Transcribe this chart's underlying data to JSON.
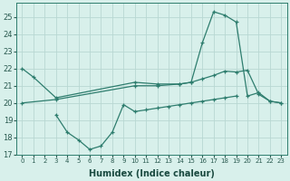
{
  "xlabel": "Humidex (Indice chaleur)",
  "color": "#2e7d6e",
  "bg_color": "#d8f0eb",
  "grid_color": "#b8d8d2",
  "ylim": [
    17,
    25.8
  ],
  "xlim": [
    -0.5,
    23.5
  ],
  "line1_x": [
    0,
    1,
    3,
    10,
    12,
    14,
    15,
    16,
    17,
    18,
    19,
    20,
    21,
    22,
    23
  ],
  "line1_y": [
    22.0,
    21.5,
    20.3,
    21.2,
    21.1,
    21.1,
    21.2,
    23.5,
    25.3,
    25.1,
    24.7,
    20.4,
    20.6,
    20.1,
    20.0
  ],
  "line2_x": [
    3,
    4,
    5,
    6,
    7,
    8,
    9,
    10,
    11,
    12,
    13,
    14,
    15,
    16,
    17,
    18,
    19
  ],
  "line2_y": [
    19.3,
    18.3,
    17.85,
    17.3,
    17.5,
    18.3,
    19.9,
    19.5,
    19.6,
    19.7,
    19.8,
    19.9,
    20.0,
    20.1,
    20.2,
    20.3,
    20.4
  ],
  "line3_x": [
    0,
    3,
    10,
    12,
    14,
    15,
    16,
    17,
    18,
    19,
    20,
    21,
    22,
    23
  ],
  "line3_y": [
    20.0,
    20.2,
    21.0,
    21.0,
    21.1,
    21.2,
    21.4,
    21.6,
    21.85,
    21.8,
    21.9,
    20.5,
    20.1,
    20.0
  ]
}
